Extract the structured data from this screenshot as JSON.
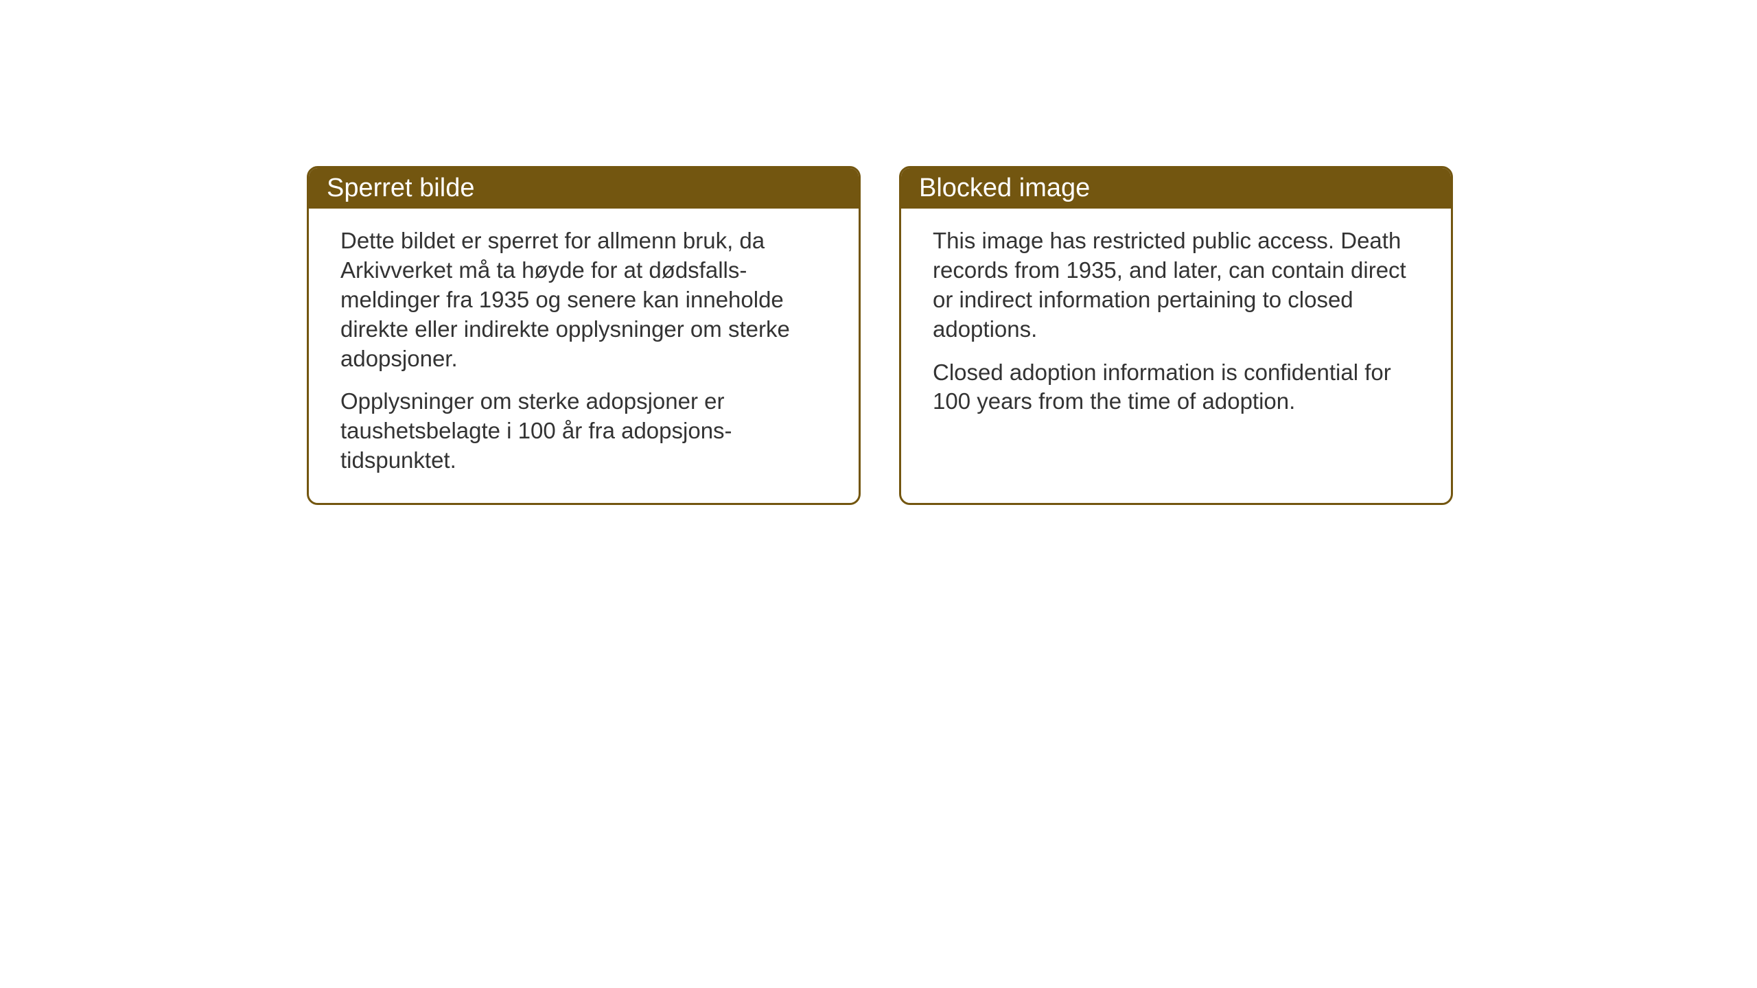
{
  "layout": {
    "background_color": "#ffffff",
    "card_border_color": "#735610",
    "card_header_bg_color": "#735610",
    "card_header_text_color": "#ffffff",
    "card_body_text_color": "#333333",
    "card_border_radius": 16,
    "card_border_width": 3,
    "header_fontsize": 38,
    "body_fontsize": 33
  },
  "cards": {
    "norwegian": {
      "title": "Sperret bilde",
      "paragraph1": "Dette bildet er sperret for allmenn bruk, da Arkivverket må ta høyde for at dødsfalls-meldinger fra 1935 og senere kan inneholde direkte eller indirekte opplysninger om sterke adopsjoner.",
      "paragraph2": "Opplysninger om sterke adopsjoner er taushetsbelagte i 100 år fra adopsjons-tidspunktet."
    },
    "english": {
      "title": "Blocked image",
      "paragraph1": "This image has restricted public access. Death records from 1935, and later, can contain direct or indirect information pertaining to closed adoptions.",
      "paragraph2": "Closed adoption information is confidential for 100 years from the time of adoption."
    }
  }
}
